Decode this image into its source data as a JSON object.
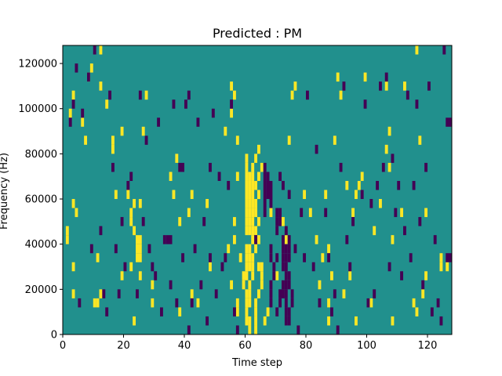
{
  "chart_data": {
    "type": "heatmap",
    "title": "Predicted : PM",
    "xlabel": "Time step",
    "ylabel": "Frequency (Hz)",
    "xlim": [
      0,
      128
    ],
    "ylim": [
      0,
      128000
    ],
    "x_ticks": [
      0,
      20,
      40,
      60,
      80,
      100,
      120
    ],
    "y_ticks": [
      0,
      20000,
      40000,
      60000,
      80000,
      100000,
      120000
    ],
    "value_levels": {
      "low": -1,
      "mid": 0,
      "high": 1
    },
    "colors": {
      "low": "#440154",
      "mid": "#21908d",
      "high": "#fde725"
    },
    "cell_height_hz": 4000,
    "cells_high": [
      [
        1,
        1,
        40000
      ],
      [
        1,
        1,
        44000
      ],
      [
        3,
        1,
        16000
      ],
      [
        3,
        1,
        28000
      ],
      [
        3,
        1,
        56000
      ],
      [
        4,
        1,
        52000
      ],
      [
        2,
        1,
        96000
      ],
      [
        3,
        1,
        104000
      ],
      [
        6,
        1,
        92000
      ],
      [
        7,
        1,
        84000
      ],
      [
        8,
        1,
        112000
      ],
      [
        9,
        1,
        116000
      ],
      [
        10,
        1,
        12000
      ],
      [
        11,
        1,
        12000
      ],
      [
        11,
        1,
        32000
      ],
      [
        12,
        1,
        16000
      ],
      [
        12,
        1,
        108000
      ],
      [
        12,
        1,
        124000
      ],
      [
        14,
        1,
        100000
      ],
      [
        16,
        1,
        80000
      ],
      [
        16,
        1,
        84000
      ],
      [
        17,
        1,
        60000
      ],
      [
        19,
        1,
        24000
      ],
      [
        19,
        1,
        88000
      ],
      [
        21,
        1,
        60000
      ],
      [
        22,
        1,
        48000
      ],
      [
        22,
        1,
        52000
      ],
      [
        23,
        1,
        56000
      ],
      [
        23,
        1,
        4000
      ],
      [
        23,
        1,
        44000
      ],
      [
        22,
        1,
        28000
      ],
      [
        24,
        2,
        32000
      ],
      [
        24,
        2,
        36000
      ],
      [
        24,
        2,
        40000
      ],
      [
        25,
        1,
        24000
      ],
      [
        25,
        1,
        56000
      ],
      [
        26,
        1,
        88000
      ],
      [
        27,
        1,
        104000
      ],
      [
        29,
        1,
        20000
      ],
      [
        29,
        1,
        12000
      ],
      [
        35,
        1,
        68000
      ],
      [
        37,
        1,
        76000
      ],
      [
        36,
        1,
        60000
      ],
      [
        38,
        1,
        48000
      ],
      [
        38,
        1,
        8000
      ],
      [
        41,
        1,
        52000
      ],
      [
        42,
        1,
        16000
      ],
      [
        42,
        1,
        60000
      ],
      [
        44,
        1,
        12000
      ],
      [
        47,
        1,
        56000
      ],
      [
        48,
        1,
        28000
      ],
      [
        53,
        1,
        88000
      ],
      [
        54,
        1,
        36000
      ],
      [
        55,
        1,
        20000
      ],
      [
        55,
        1,
        96000
      ],
      [
        55,
        1,
        108000
      ],
      [
        56,
        1,
        48000
      ],
      [
        56,
        1,
        104000
      ],
      [
        56,
        1,
        40000
      ],
      [
        57,
        1,
        68000
      ],
      [
        57,
        1,
        84000
      ],
      [
        57,
        1,
        12000
      ],
      [
        57,
        1,
        8000
      ],
      [
        58,
        1,
        32000
      ],
      [
        59,
        1,
        20000
      ],
      [
        59,
        1,
        24000
      ],
      [
        60,
        1,
        64000
      ],
      [
        60,
        1,
        68000
      ],
      [
        60,
        1,
        72000
      ],
      [
        60,
        1,
        76000
      ],
      [
        60,
        1,
        44000
      ],
      [
        60,
        1,
        48000
      ],
      [
        60,
        1,
        52000
      ],
      [
        60,
        1,
        56000
      ],
      [
        60,
        1,
        60000
      ],
      [
        60,
        1,
        36000
      ],
      [
        60,
        1,
        28000
      ],
      [
        60,
        1,
        32000
      ],
      [
        60,
        1,
        24000
      ],
      [
        60,
        1,
        16000
      ],
      [
        60,
        1,
        12000
      ],
      [
        60,
        1,
        4000
      ],
      [
        60,
        1,
        8000
      ],
      [
        61,
        1,
        60000
      ],
      [
        61,
        1,
        56000
      ],
      [
        61,
        1,
        52000
      ],
      [
        61,
        1,
        48000
      ],
      [
        61,
        1,
        44000
      ],
      [
        61,
        1,
        64000
      ],
      [
        61,
        1,
        68000
      ],
      [
        61,
        1,
        36000
      ],
      [
        61,
        1,
        32000
      ],
      [
        61,
        1,
        28000
      ],
      [
        61,
        1,
        20000
      ],
      [
        61,
        1,
        16000
      ],
      [
        61,
        1,
        12000
      ],
      [
        61,
        1,
        0
      ],
      [
        61,
        1,
        4000
      ],
      [
        62,
        1,
        72000
      ],
      [
        62,
        1,
        68000
      ],
      [
        62,
        1,
        64000
      ],
      [
        62,
        1,
        60000
      ],
      [
        62,
        1,
        56000
      ],
      [
        62,
        1,
        52000
      ],
      [
        62,
        1,
        48000
      ],
      [
        62,
        1,
        44000
      ],
      [
        62,
        1,
        40000
      ],
      [
        62,
        1,
        24000
      ],
      [
        62,
        1,
        28000
      ],
      [
        62,
        1,
        32000
      ],
      [
        63,
        1,
        76000
      ],
      [
        63,
        1,
        64000
      ],
      [
        63,
        1,
        56000
      ],
      [
        63,
        1,
        52000
      ],
      [
        63,
        1,
        44000
      ],
      [
        63,
        1,
        36000
      ],
      [
        63,
        1,
        12000
      ],
      [
        63,
        1,
        8000
      ],
      [
        63,
        1,
        4000
      ],
      [
        63,
        1,
        0
      ],
      [
        64,
        1,
        80000
      ],
      [
        64,
        1,
        68000
      ],
      [
        64,
        1,
        60000
      ],
      [
        64,
        1,
        48000
      ],
      [
        64,
        1,
        40000
      ],
      [
        64,
        1,
        28000
      ],
      [
        64,
        1,
        16000
      ],
      [
        65,
        1,
        72000
      ],
      [
        65,
        1,
        28000
      ],
      [
        65,
        1,
        24000
      ],
      [
        65,
        1,
        20000
      ],
      [
        66,
        1,
        4000
      ],
      [
        67,
        1,
        8000
      ],
      [
        68,
        1,
        52000
      ],
      [
        70,
        1,
        24000
      ],
      [
        72,
        1,
        48000
      ],
      [
        73,
        1,
        40000
      ],
      [
        74,
        1,
        84000
      ],
      [
        75,
        1,
        104000
      ],
      [
        76,
        1,
        108000
      ],
      [
        79,
        1,
        60000
      ],
      [
        81,
        1,
        52000
      ],
      [
        83,
        1,
        40000
      ],
      [
        84,
        1,
        20000
      ],
      [
        85,
        1,
        32000
      ],
      [
        86,
        1,
        60000
      ],
      [
        87,
        1,
        4000
      ],
      [
        87,
        1,
        12000
      ],
      [
        87,
        1,
        36000
      ],
      [
        88,
        1,
        24000
      ],
      [
        89,
        1,
        84000
      ],
      [
        90,
        1,
        112000
      ],
      [
        91,
        1,
        104000
      ],
      [
        92,
        1,
        16000
      ],
      [
        93,
        1,
        64000
      ],
      [
        94,
        1,
        24000
      ],
      [
        95,
        1,
        52000
      ],
      [
        96,
        1,
        4000
      ],
      [
        96,
        1,
        60000
      ],
      [
        97,
        1,
        64000
      ],
      [
        98,
        1,
        68000
      ],
      [
        99,
        1,
        112000
      ],
      [
        101,
        1,
        12000
      ],
      [
        102,
        1,
        44000
      ],
      [
        104,
        1,
        56000
      ],
      [
        106,
        1,
        80000
      ],
      [
        106,
        1,
        108000
      ],
      [
        107,
        1,
        72000
      ],
      [
        107,
        1,
        88000
      ],
      [
        108,
        1,
        40000
      ],
      [
        108,
        1,
        4000
      ],
      [
        111,
        1,
        52000
      ],
      [
        112,
        1,
        108000
      ],
      [
        115,
        1,
        12000
      ],
      [
        116,
        1,
        8000
      ],
      [
        116,
        1,
        124000
      ],
      [
        117,
        1,
        84000
      ],
      [
        118,
        1,
        16000
      ],
      [
        119,
        1,
        24000
      ],
      [
        119,
        1,
        52000
      ],
      [
        124,
        1,
        28000
      ],
      [
        124,
        1,
        32000
      ],
      [
        126,
        1,
        28000
      ]
    ],
    "cells_low": [
      [
        2,
        1,
        92000
      ],
      [
        3,
        1,
        100000
      ],
      [
        4,
        1,
        116000
      ],
      [
        5,
        1,
        12000
      ],
      [
        6,
        1,
        96000
      ],
      [
        8,
        1,
        112000
      ],
      [
        9,
        1,
        36000
      ],
      [
        10,
        1,
        124000
      ],
      [
        12,
        1,
        44000
      ],
      [
        13,
        1,
        16000
      ],
      [
        14,
        1,
        8000
      ],
      [
        15,
        1,
        104000
      ],
      [
        16,
        1,
        72000
      ],
      [
        17,
        1,
        36000
      ],
      [
        18,
        1,
        16000
      ],
      [
        19,
        1,
        48000
      ],
      [
        20,
        1,
        28000
      ],
      [
        21,
        1,
        64000
      ],
      [
        22,
        1,
        68000
      ],
      [
        24,
        1,
        16000
      ],
      [
        25,
        1,
        104000
      ],
      [
        26,
        1,
        48000
      ],
      [
        27,
        1,
        84000
      ],
      [
        28,
        1,
        36000
      ],
      [
        29,
        1,
        28000
      ],
      [
        30,
        1,
        24000
      ],
      [
        31,
        1,
        92000
      ],
      [
        32,
        1,
        8000
      ],
      [
        33,
        1,
        40000
      ],
      [
        34,
        2,
        40000
      ],
      [
        35,
        1,
        20000
      ],
      [
        36,
        1,
        100000
      ],
      [
        37,
        1,
        12000
      ],
      [
        38,
        2,
        72000
      ],
      [
        39,
        1,
        32000
      ],
      [
        40,
        1,
        100000
      ],
      [
        41,
        1,
        104000
      ],
      [
        41,
        1,
        0
      ],
      [
        42,
        1,
        12000
      ],
      [
        43,
        1,
        36000
      ],
      [
        44,
        1,
        92000
      ],
      [
        45,
        1,
        20000
      ],
      [
        46,
        1,
        48000
      ],
      [
        47,
        1,
        4000
      ],
      [
        48,
        1,
        72000
      ],
      [
        48,
        1,
        32000
      ],
      [
        49,
        1,
        96000
      ],
      [
        50,
        1,
        16000
      ],
      [
        51,
        1,
        68000
      ],
      [
        52,
        1,
        28000
      ],
      [
        53,
        1,
        32000
      ],
      [
        54,
        1,
        64000
      ],
      [
        55,
        1,
        100000
      ],
      [
        56,
        1,
        8000
      ],
      [
        57,
        1,
        0
      ],
      [
        63,
        1,
        40000
      ],
      [
        66,
        1,
        52000
      ],
      [
        66,
        1,
        56000
      ],
      [
        66,
        1,
        60000
      ],
      [
        66,
        1,
        64000
      ],
      [
        66,
        1,
        68000
      ],
      [
        66,
        1,
        72000
      ],
      [
        67,
        1,
        60000
      ],
      [
        67,
        1,
        64000
      ],
      [
        67,
        1,
        68000
      ],
      [
        68,
        1,
        56000
      ],
      [
        68,
        1,
        60000
      ],
      [
        68,
        1,
        64000
      ],
      [
        68,
        1,
        36000
      ],
      [
        68,
        1,
        32000
      ],
      [
        68,
        1,
        20000
      ],
      [
        68,
        1,
        16000
      ],
      [
        68,
        1,
        12000
      ],
      [
        69,
        1,
        24000
      ],
      [
        69,
        1,
        28000
      ],
      [
        70,
        1,
        48000
      ],
      [
        70,
        1,
        52000
      ],
      [
        70,
        1,
        44000
      ],
      [
        70,
        1,
        32000
      ],
      [
        70,
        1,
        8000
      ],
      [
        71,
        1,
        48000
      ],
      [
        71,
        1,
        52000
      ],
      [
        71,
        1,
        68000
      ],
      [
        71,
        1,
        12000
      ],
      [
        71,
        1,
        16000
      ],
      [
        72,
        1,
        40000
      ],
      [
        72,
        1,
        36000
      ],
      [
        72,
        1,
        32000
      ],
      [
        72,
        1,
        28000
      ],
      [
        72,
        1,
        20000
      ],
      [
        72,
        1,
        16000
      ],
      [
        72,
        1,
        64000
      ],
      [
        73,
        1,
        44000
      ],
      [
        73,
        1,
        36000
      ],
      [
        73,
        1,
        32000
      ],
      [
        73,
        1,
        28000
      ],
      [
        73,
        1,
        24000
      ],
      [
        73,
        1,
        20000
      ],
      [
        73,
        1,
        16000
      ],
      [
        73,
        1,
        12000
      ],
      [
        73,
        1,
        8000
      ],
      [
        73,
        1,
        4000
      ],
      [
        74,
        1,
        40000
      ],
      [
        74,
        1,
        36000
      ],
      [
        74,
        1,
        32000
      ],
      [
        74,
        1,
        24000
      ],
      [
        74,
        1,
        20000
      ],
      [
        74,
        1,
        4000
      ],
      [
        74,
        1,
        8000
      ],
      [
        74,
        1,
        60000
      ],
      [
        75,
        1,
        16000
      ],
      [
        75,
        1,
        12000
      ],
      [
        76,
        1,
        36000
      ],
      [
        77,
        1,
        0
      ],
      [
        78,
        1,
        52000
      ],
      [
        79,
        1,
        32000
      ],
      [
        80,
        1,
        104000
      ],
      [
        82,
        1,
        28000
      ],
      [
        83,
        1,
        80000
      ],
      [
        84,
        1,
        12000
      ],
      [
        86,
        1,
        52000
      ],
      [
        87,
        1,
        32000
      ],
      [
        88,
        1,
        8000
      ],
      [
        89,
        1,
        16000
      ],
      [
        90,
        1,
        0
      ],
      [
        91,
        1,
        72000
      ],
      [
        92,
        1,
        108000
      ],
      [
        93,
        1,
        40000
      ],
      [
        94,
        1,
        28000
      ],
      [
        95,
        1,
        48000
      ],
      [
        98,
        1,
        60000
      ],
      [
        99,
        1,
        100000
      ],
      [
        100,
        1,
        12000
      ],
      [
        101,
        1,
        56000
      ],
      [
        102,
        1,
        16000
      ],
      [
        103,
        1,
        64000
      ],
      [
        104,
        1,
        108000
      ],
      [
        105,
        1,
        72000
      ],
      [
        106,
        1,
        112000
      ],
      [
        107,
        1,
        28000
      ],
      [
        108,
        1,
        76000
      ],
      [
        109,
        1,
        52000
      ],
      [
        110,
        1,
        64000
      ],
      [
        111,
        1,
        24000
      ],
      [
        112,
        1,
        44000
      ],
      [
        113,
        1,
        104000
      ],
      [
        114,
        1,
        32000
      ],
      [
        115,
        1,
        64000
      ],
      [
        116,
        1,
        100000
      ],
      [
        117,
        1,
        48000
      ],
      [
        118,
        1,
        20000
      ],
      [
        119,
        1,
        72000
      ],
      [
        120,
        1,
        108000
      ],
      [
        121,
        1,
        8000
      ],
      [
        122,
        1,
        40000
      ],
      [
        123,
        1,
        12000
      ],
      [
        124,
        1,
        4000
      ],
      [
        125,
        1,
        124000
      ],
      [
        126,
        2,
        92000
      ],
      [
        126,
        2,
        32000
      ]
    ]
  }
}
